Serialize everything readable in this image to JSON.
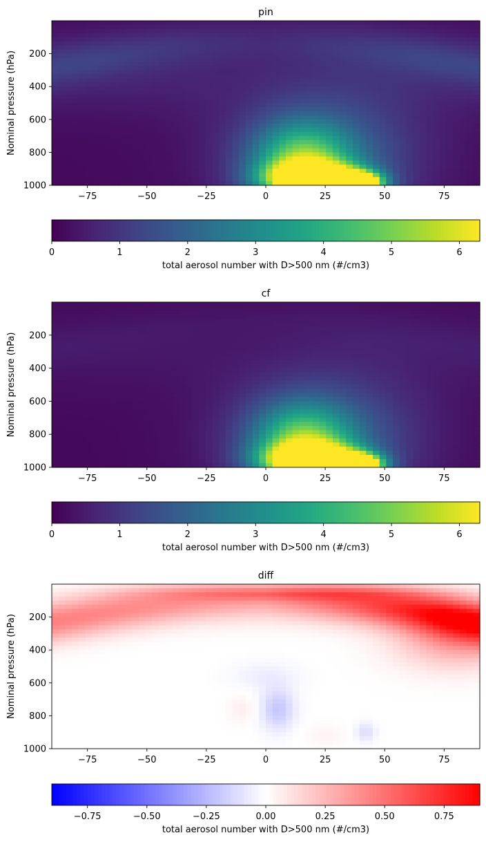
{
  "chart_data": [
    {
      "type": "heatmap",
      "title": "pin",
      "xlabel": "",
      "ylabel": "Nominal pressure (hPa)",
      "xlim": [
        -90,
        90
      ],
      "ylim": [
        1000,
        0
      ],
      "x_ticks": [
        -75,
        -50,
        -25,
        0,
        25,
        50,
        75
      ],
      "y_ticks": [
        200,
        400,
        600,
        800,
        1000
      ],
      "colormap": "viridis",
      "colorbar": {
        "label": "total aerosol number with D>500 nm (#/cm3)",
        "range": [
          0,
          6.3
        ],
        "ticks": [
          0,
          1,
          2,
          3,
          4,
          5,
          6
        ]
      },
      "background_value": 0.25,
      "stratosphere_band": {
        "value": 0.7,
        "center_lat_value": 0.35,
        "low_lat_plateau": 0.45
      },
      "features": [
        {
          "lat": 20,
          "p": 960,
          "value": 6.2,
          "lat_width": 14,
          "p_width": 70
        },
        {
          "lat": 30,
          "p": 990,
          "value": 5.8,
          "lat_width": 10,
          "p_width": 40
        },
        {
          "lat": 40,
          "p": 985,
          "value": 5.0,
          "lat_width": 6,
          "p_width": 45
        },
        {
          "lat": 15,
          "p": 850,
          "value": 3.4,
          "lat_width": 14,
          "p_width": 160
        },
        {
          "lat": 25,
          "p": 780,
          "value": 1.3,
          "lat_width": 28,
          "p_width": 260
        }
      ]
    },
    {
      "type": "heatmap",
      "title": "cf",
      "xlabel": "",
      "ylabel": "Nominal pressure (hPa)",
      "xlim": [
        -90,
        90
      ],
      "ylim": [
        1000,
        0
      ],
      "x_ticks": [
        -75,
        -50,
        -25,
        0,
        25,
        50,
        75
      ],
      "y_ticks": [
        200,
        400,
        600,
        800,
        1000
      ],
      "colormap": "viridis",
      "colorbar": {
        "label": "total aerosol number with D>500 nm (#/cm3)",
        "range": [
          0,
          6.3
        ],
        "ticks": [
          0,
          1,
          2,
          3,
          4,
          5,
          6
        ]
      },
      "background_value": 0.22,
      "stratosphere_band": {
        "value": 0.15,
        "center_lat_value": 0.1,
        "low_lat_plateau": 0.2
      },
      "features": [
        {
          "lat": 20,
          "p": 960,
          "value": 6.3,
          "lat_width": 14,
          "p_width": 70
        },
        {
          "lat": 30,
          "p": 990,
          "value": 5.9,
          "lat_width": 10,
          "p_width": 40
        },
        {
          "lat": 40,
          "p": 985,
          "value": 5.1,
          "lat_width": 6,
          "p_width": 45
        },
        {
          "lat": 15,
          "p": 850,
          "value": 3.5,
          "lat_width": 14,
          "p_width": 160
        },
        {
          "lat": 25,
          "p": 780,
          "value": 1.3,
          "lat_width": 28,
          "p_width": 260
        }
      ]
    },
    {
      "type": "heatmap",
      "title": "diff",
      "xlabel": "",
      "ylabel": "Nominal pressure (hPa)",
      "xlim": [
        -90,
        90
      ],
      "ylim": [
        1000,
        0
      ],
      "x_ticks": [
        -75,
        -50,
        -25,
        0,
        25,
        50,
        75
      ],
      "y_ticks": [
        200,
        400,
        600,
        800,
        1000
      ],
      "colormap": "bwr",
      "colorbar": {
        "label": "total aerosol number with D>500 nm (#/cm3)",
        "range": [
          -0.9,
          0.9
        ],
        "ticks": [
          -0.75,
          -0.5,
          -0.25,
          0.0,
          0.25,
          0.5,
          0.75
        ],
        "tick_labels": [
          "−0.75",
          "−0.50",
          "−0.25",
          "0.00",
          "0.25",
          "0.50",
          "0.75"
        ]
      }
    }
  ]
}
